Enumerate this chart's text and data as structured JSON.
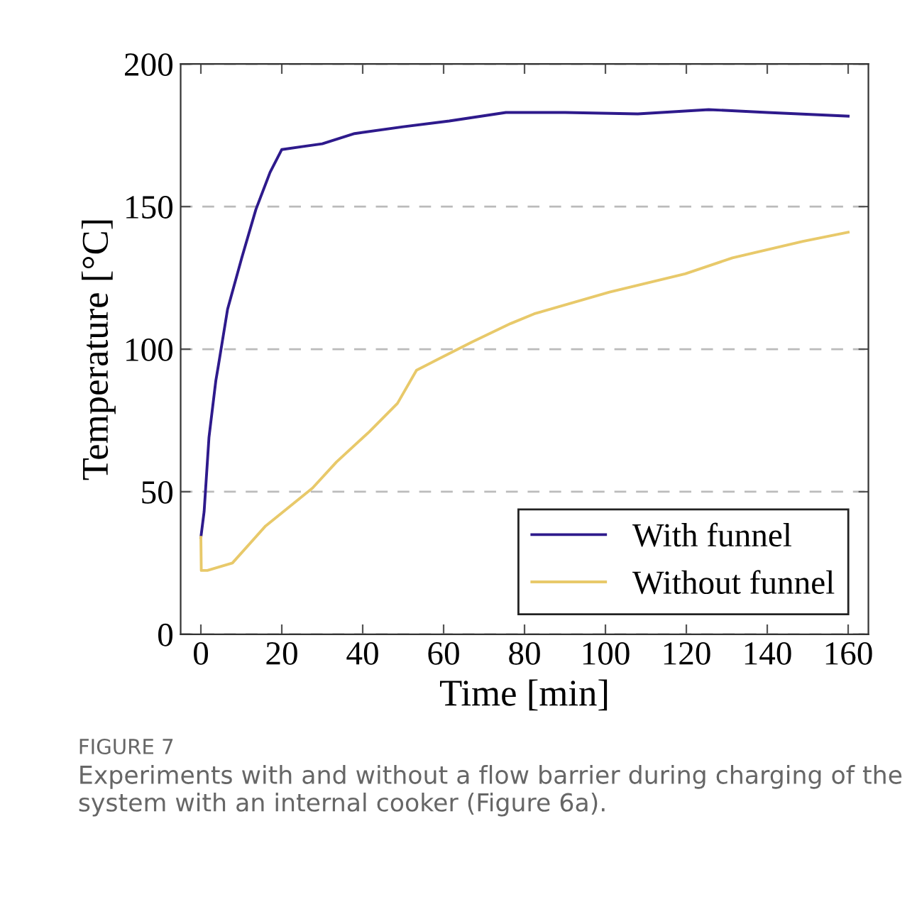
{
  "chart_data": {
    "type": "line",
    "xlabel": "Time [min]",
    "ylabel": "Temperature [°C]",
    "xlim": [
      -5,
      165
    ],
    "ylim": [
      0,
      200
    ],
    "xticks": [
      0,
      20,
      40,
      60,
      80,
      100,
      120,
      140,
      160
    ],
    "yticks": [
      0,
      50,
      100,
      150,
      200
    ],
    "grid": "y",
    "legend": "bottom right",
    "marker": "none",
    "line_style": "solid",
    "series": [
      {
        "name": "With funnel",
        "color": "#2e1a8c",
        "x": [
          0,
          0.8,
          2,
          3.7,
          4.3,
          6.6,
          10.1,
          13.6,
          17.1,
          20,
          25,
          30,
          38,
          50,
          61.4,
          75.4,
          90,
          108,
          125.5,
          140,
          160
        ],
        "values": [
          34,
          43,
          69,
          89,
          94,
          114,
          132,
          149,
          162,
          170,
          171,
          172,
          175.6,
          178,
          180,
          183,
          183,
          182.5,
          184,
          183,
          181.7
        ]
      },
      {
        "name": "Without funnel",
        "color": "#e8c96a",
        "x": [
          0,
          0.1,
          1.6,
          7.8,
          16,
          27.6,
          33.5,
          41.6,
          48.6,
          53.3,
          58,
          67,
          76.6,
          82.4,
          101,
          119.7,
          131.4,
          148.8,
          160
        ],
        "values": [
          34,
          22.4,
          22.4,
          25,
          38,
          51.3,
          60.4,
          71,
          81,
          92.6,
          96,
          102.5,
          109,
          112.4,
          120,
          126.4,
          132,
          137.8,
          141
        ]
      }
    ],
    "annotations": [
      "FIGURE 7",
      "Experiments with and without a flow barrier during charging of the system with an internal cooker (Figure 6a)."
    ]
  }
}
